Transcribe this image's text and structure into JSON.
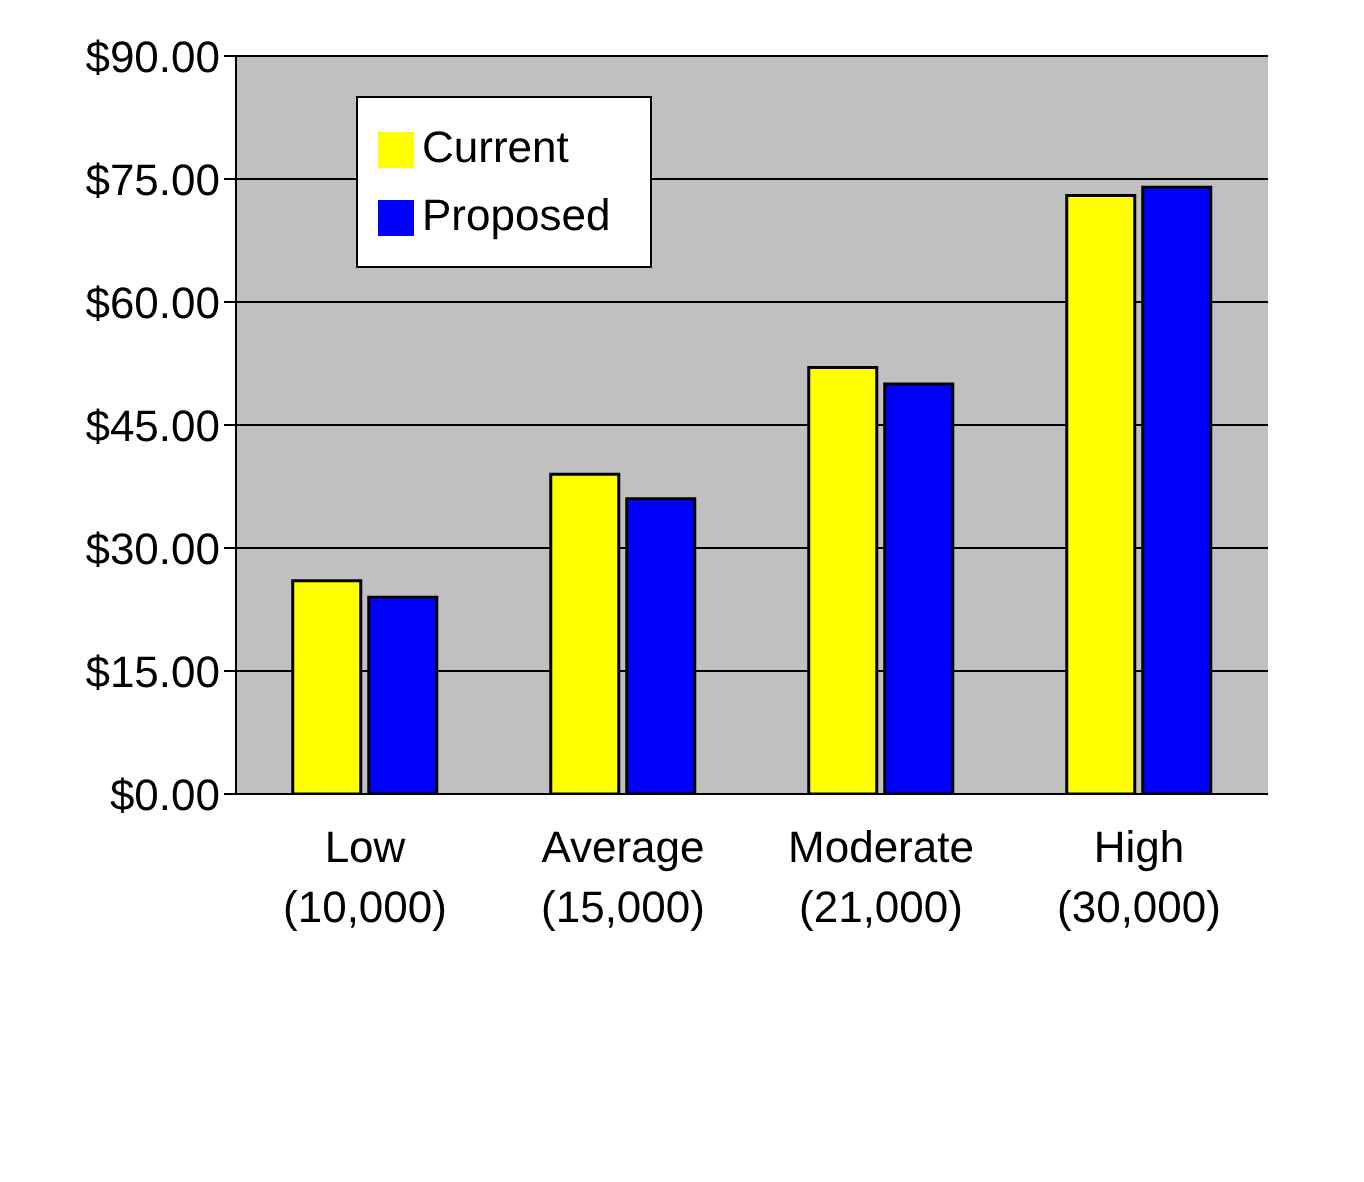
{
  "chart_data": {
    "type": "bar",
    "categories": [
      "Low\n(10,000)",
      "Average\n(15,000)",
      "Moderate\n(21,000)",
      "High\n(30,000)"
    ],
    "series": [
      {
        "name": "Current",
        "color": "#ffff00",
        "values": [
          26,
          39,
          52,
          73
        ]
      },
      {
        "name": "Proposed",
        "color": "#0000ff",
        "values": [
          24,
          36,
          50,
          74
        ]
      }
    ],
    "ylim": [
      0,
      90
    ],
    "yticks": [
      {
        "value": 0,
        "label": "$0.00"
      },
      {
        "value": 15,
        "label": "$15.00"
      },
      {
        "value": 30,
        "label": "$30.00"
      },
      {
        "value": 45,
        "label": "$45.00"
      },
      {
        "value": 60,
        "label": "$60.00"
      },
      {
        "value": 75,
        "label": "$75.00"
      },
      {
        "value": 90,
        "label": "$90.00"
      }
    ],
    "grid": "y",
    "legend": "top left"
  }
}
